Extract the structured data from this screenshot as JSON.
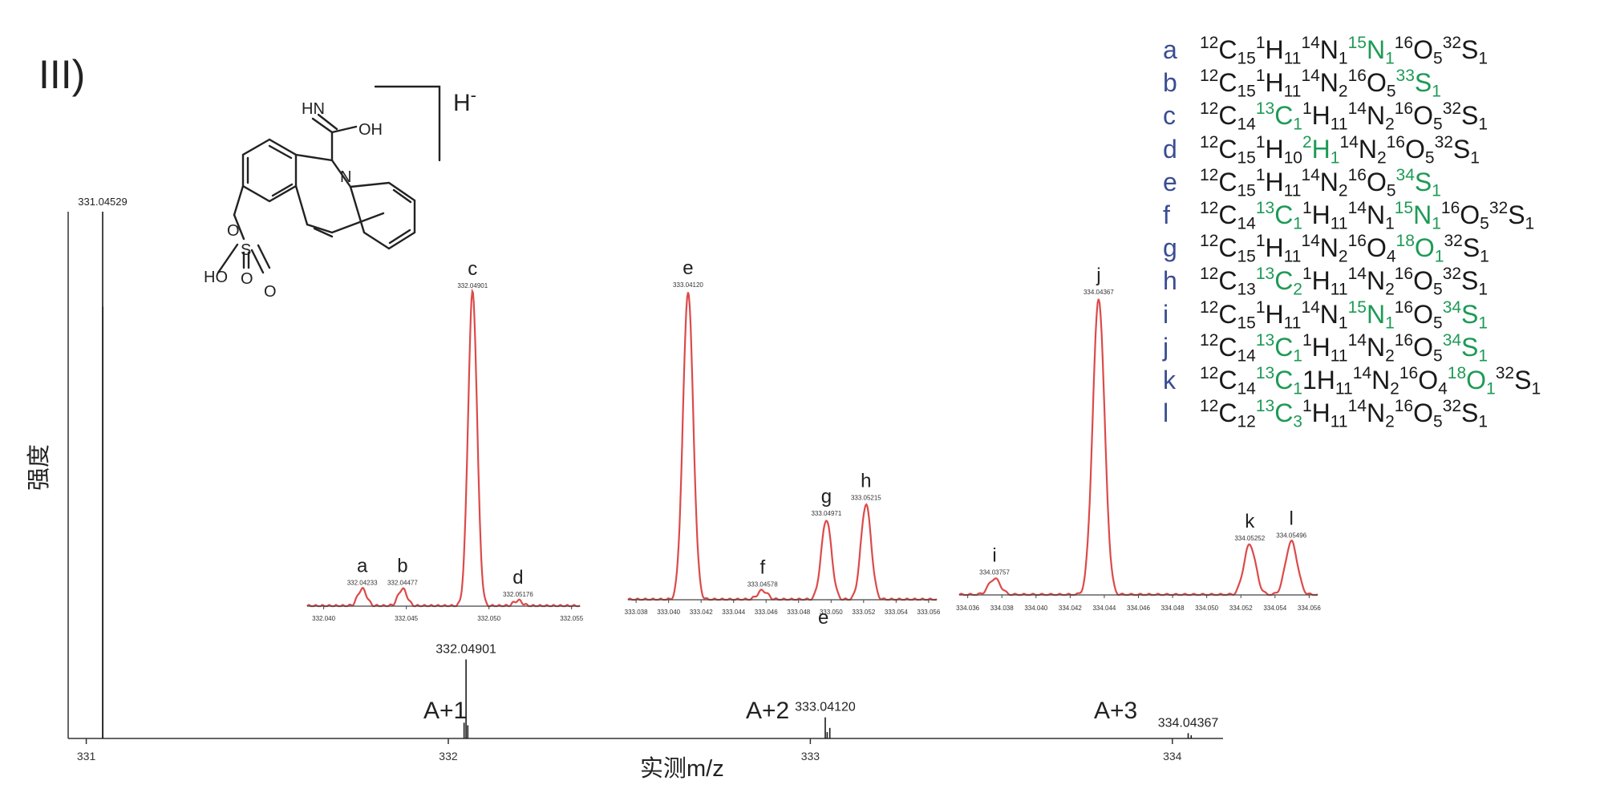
{
  "panel_label": "III)",
  "structure": {
    "adduct_label": "H",
    "adduct_charge": "-",
    "atom_labels": [
      "HN",
      "OH",
      "N",
      "O",
      "S",
      "HO",
      "O",
      "O"
    ]
  },
  "annotations": {
    "a1": "A+1",
    "a2": "A+2",
    "a3": "A+3",
    "extra_e": "e"
  },
  "chart_data": [
    {
      "type": "bar",
      "name": "main-spectrum",
      "xlabel": "实测m/z",
      "ylabel": "强度",
      "xlim": [
        330.95,
        334.14
      ],
      "xticks": [
        331,
        332,
        333,
        334
      ],
      "x_tick_labels": [
        "331",
        "332",
        "333",
        "334"
      ],
      "peaks": [
        {
          "x": 331.04529,
          "y": 1.0,
          "label": "331.04529"
        },
        {
          "x": 331.0457,
          "y": 0.82,
          "label": ""
        },
        {
          "x": 332.04901,
          "y": 0.15,
          "label": "332.04901"
        },
        {
          "x": 332.0436,
          "y": 0.03,
          "label": ""
        },
        {
          "x": 332.0538,
          "y": 0.025,
          "label": ""
        },
        {
          "x": 333.0412,
          "y": 0.04,
          "label": "333.04120"
        },
        {
          "x": 333.0538,
          "y": 0.02,
          "label": ""
        },
        {
          "x": 333.0465,
          "y": 0.012,
          "label": ""
        },
        {
          "x": 334.04367,
          "y": 0.01,
          "label": "334.04367"
        },
        {
          "x": 334.052,
          "y": 0.006,
          "label": ""
        }
      ]
    },
    {
      "type": "line",
      "name": "zoom-a1",
      "xlim": [
        332.039,
        332.0555
      ],
      "xticks": [
        332.04,
        332.045,
        332.05,
        332.055
      ],
      "x_tick_labels": [
        "332.040",
        "332.045",
        "332.050",
        "332.055"
      ],
      "peaks": [
        {
          "letter": "a",
          "x": 332.04233,
          "y": 0.055,
          "label": "332.04233"
        },
        {
          "letter": "b",
          "x": 332.04477,
          "y": 0.055,
          "label": "332.04477"
        },
        {
          "letter": "c",
          "x": 332.04901,
          "y": 1.0,
          "label": "332.04901"
        },
        {
          "letter": "d",
          "x": 332.05176,
          "y": 0.018,
          "label": "332.05176"
        }
      ]
    },
    {
      "type": "line",
      "name": "zoom-a2",
      "xlim": [
        333.0375,
        333.0565
      ],
      "xticks": [
        333.038,
        333.04,
        333.042,
        333.044,
        333.046,
        333.048,
        333.05,
        333.052,
        333.054,
        333.056
      ],
      "x_tick_labels": [
        "333.038",
        "333.040",
        "333.042",
        "333.044",
        "333.046",
        "333.048",
        "333.050",
        "333.052",
        "333.054",
        "333.056"
      ],
      "peaks": [
        {
          "letter": "e",
          "x": 333.0412,
          "y": 1.0,
          "label": "333.04120"
        },
        {
          "letter": "f",
          "x": 333.04578,
          "y": 0.03,
          "label": "333.04578"
        },
        {
          "letter": "g",
          "x": 333.04971,
          "y": 0.26,
          "label": "333.04971"
        },
        {
          "letter": "h",
          "x": 333.05215,
          "y": 0.31,
          "label": "333.05215"
        }
      ]
    },
    {
      "type": "line",
      "name": "zoom-a3",
      "xlim": [
        334.0355,
        334.0565
      ],
      "xticks": [
        334.036,
        334.038,
        334.04,
        334.042,
        334.044,
        334.046,
        334.048,
        334.05,
        334.052,
        334.054,
        334.056
      ],
      "x_tick_labels": [
        "334.036",
        "334.038",
        "334.040",
        "334.042",
        "334.044",
        "334.046",
        "334.048",
        "334.050",
        "334.052",
        "334.054",
        "334.056"
      ],
      "peaks": [
        {
          "letter": "i",
          "x": 334.03757,
          "y": 0.055,
          "label": "334.03757"
        },
        {
          "letter": "j",
          "x": 334.04367,
          "y": 1.0,
          "label": "334.04367"
        },
        {
          "letter": "k",
          "x": 334.05252,
          "y": 0.17,
          "label": "334.05252"
        },
        {
          "letter": "l",
          "x": 334.05496,
          "y": 0.18,
          "label": "334.05496"
        }
      ]
    }
  ],
  "legend": [
    {
      "letter": "a",
      "formula": [
        [
          "12",
          "C",
          "15",
          0
        ],
        [
          "1",
          "H",
          "11",
          0
        ],
        [
          "14",
          "N",
          "1",
          0
        ],
        [
          "15",
          "N",
          "1",
          1
        ],
        [
          "16",
          "O",
          "5",
          0
        ],
        [
          "32",
          "S",
          "1",
          0
        ]
      ]
    },
    {
      "letter": "b",
      "formula": [
        [
          "12",
          "C",
          "15",
          0
        ],
        [
          "1",
          "H",
          "11",
          0
        ],
        [
          "14",
          "N",
          "2",
          0
        ],
        [
          "16",
          "O",
          "5",
          0
        ],
        [
          "33",
          "S",
          "1",
          1
        ]
      ]
    },
    {
      "letter": "c",
      "formula": [
        [
          "12",
          "C",
          "14",
          0
        ],
        [
          "13",
          "C",
          "1",
          1
        ],
        [
          "1",
          "H",
          "11",
          0
        ],
        [
          "14",
          "N",
          "2",
          0
        ],
        [
          "16",
          "O",
          "5",
          0
        ],
        [
          "32",
          "S",
          "1",
          0
        ]
      ]
    },
    {
      "letter": "d",
      "formula": [
        [
          "12",
          "C",
          "15",
          0
        ],
        [
          "1",
          "H",
          "10",
          0
        ],
        [
          "2",
          "H",
          "1",
          1
        ],
        [
          "14",
          "N",
          "2",
          0
        ],
        [
          "16",
          "O",
          "5",
          0
        ],
        [
          "32",
          "S",
          "1",
          0
        ]
      ]
    },
    {
      "letter": "e",
      "formula": [
        [
          "12",
          "C",
          "15",
          0
        ],
        [
          "1",
          "H",
          "11",
          0
        ],
        [
          "14",
          "N",
          "2",
          0
        ],
        [
          "16",
          "O",
          "5",
          0
        ],
        [
          "34",
          "S",
          "1",
          1
        ]
      ]
    },
    {
      "letter": "f",
      "formula": [
        [
          "12",
          "C",
          "14",
          0
        ],
        [
          "13",
          "C",
          "1",
          1
        ],
        [
          "1",
          "H",
          "11",
          0
        ],
        [
          "14",
          "N",
          "1",
          0
        ],
        [
          "15",
          "N",
          "1",
          1
        ],
        [
          "16",
          "O",
          "5",
          0
        ],
        [
          "32",
          "S",
          "1",
          0
        ]
      ]
    },
    {
      "letter": "g",
      "formula": [
        [
          "12",
          "C",
          "15",
          0
        ],
        [
          "1",
          "H",
          "11",
          0
        ],
        [
          "14",
          "N",
          "2",
          0
        ],
        [
          "16",
          "O",
          "4",
          0
        ],
        [
          "18",
          "O",
          "1",
          1
        ],
        [
          "32",
          "S",
          "1",
          0
        ]
      ]
    },
    {
      "letter": "h",
      "formula": [
        [
          "12",
          "C",
          "13",
          0
        ],
        [
          "13",
          "C",
          "2",
          1
        ],
        [
          "1",
          "H",
          "11",
          0
        ],
        [
          "14",
          "N",
          "2",
          0
        ],
        [
          "16",
          "O",
          "5",
          0
        ],
        [
          "32",
          "S",
          "1",
          0
        ]
      ]
    },
    {
      "letter": "i",
      "formula": [
        [
          "12",
          "C",
          "15",
          0
        ],
        [
          "1",
          "H",
          "11",
          0
        ],
        [
          "14",
          "N",
          "1",
          0
        ],
        [
          "15",
          "N",
          "1",
          1
        ],
        [
          "16",
          "O",
          "5",
          0
        ],
        [
          "34",
          "S",
          "1",
          1
        ]
      ]
    },
    {
      "letter": "j",
      "formula": [
        [
          "12",
          "C",
          "14",
          0
        ],
        [
          "13",
          "C",
          "1",
          1
        ],
        [
          "1",
          "H",
          "11",
          0
        ],
        [
          "14",
          "N",
          "2",
          0
        ],
        [
          "16",
          "O",
          "5",
          0
        ],
        [
          "34",
          "S",
          "1",
          1
        ]
      ]
    },
    {
      "letter": "k",
      "formula": [
        [
          "12",
          "C",
          "14",
          0
        ],
        [
          "13",
          "C",
          "1",
          1
        ],
        [
          "",
          "1H",
          "11",
          0
        ],
        [
          "14",
          "N",
          "2",
          0
        ],
        [
          "16",
          "O",
          "4",
          0
        ],
        [
          "18",
          "O",
          "1",
          1
        ],
        [
          "32",
          "S",
          "1",
          0
        ]
      ]
    },
    {
      "letter": "l",
      "formula": [
        [
          "12",
          "C",
          "12",
          0
        ],
        [
          "13",
          "C",
          "3",
          1
        ],
        [
          "1",
          "H",
          "11",
          0
        ],
        [
          "14",
          "N",
          "2",
          0
        ],
        [
          "16",
          "O",
          "5",
          0
        ],
        [
          "32",
          "S",
          "1",
          0
        ]
      ]
    }
  ],
  "colors": {
    "zoom_line": "#dc4a4a",
    "axis": "#333333",
    "legend_letter": "#3a4d94",
    "isotope_highlight": "#1e9a55"
  }
}
